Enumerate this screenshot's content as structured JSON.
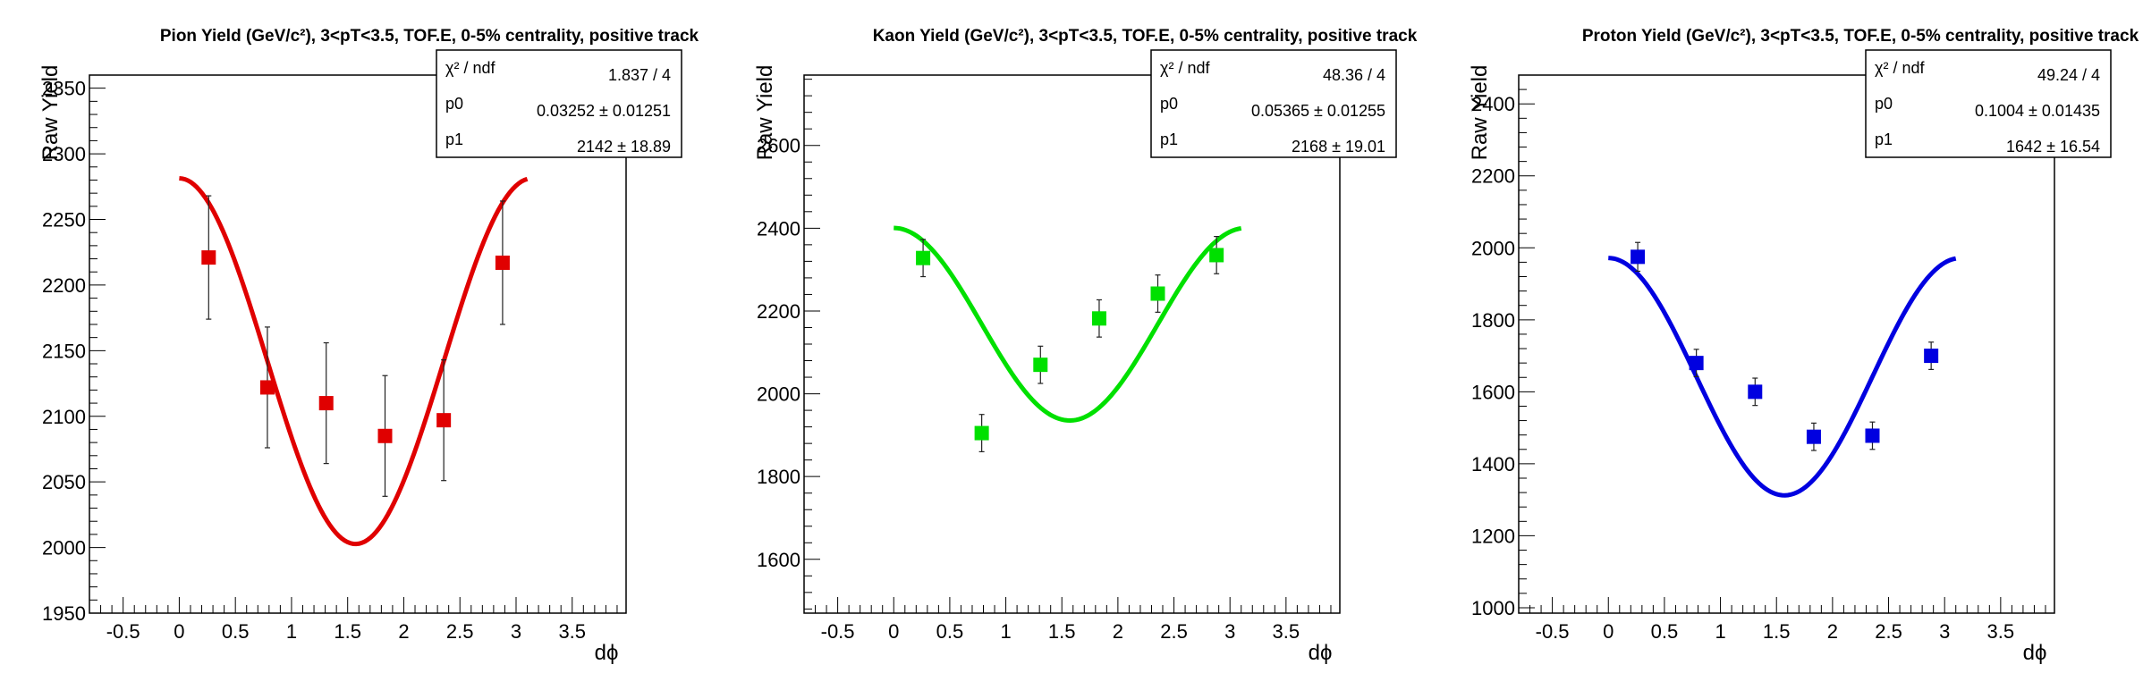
{
  "chart_data": [
    {
      "type": "scatter",
      "title": "Pion Yield (GeV/c²), 3<pT<3.5, TOF.E, 0-5% centrality, positive track",
      "xlabel": "dϕ",
      "ylabel": "Raw Yield",
      "xlim": [
        -0.8,
        3.98
      ],
      "ylim": [
        1950,
        2360
      ],
      "x_ticks": [
        "-0.5",
        "0",
        "0.5",
        "1",
        "1.5",
        "2",
        "2.5",
        "3",
        "3.5"
      ],
      "y_ticks": [
        "1950",
        "2000",
        "2050",
        "2100",
        "2150",
        "2200",
        "2250",
        "2300",
        "2350"
      ],
      "color": "#e00000",
      "series": [
        {
          "x": [
            0.262,
            0.785,
            1.309,
            1.833,
            2.356,
            2.88
          ],
          "y": [
            2221,
            2122,
            2110,
            2085,
            2097,
            2217
          ],
          "err": [
            47,
            46,
            46,
            46,
            46,
            47
          ]
        }
      ],
      "fit": {
        "p0": 0.03252,
        "p1": 2142,
        "xrange": [
          0.0,
          3.1
        ]
      },
      "stats": [
        {
          "label": "χ² / ndf",
          "value": "1.837 / 4"
        },
        {
          "label": "p0",
          "value": "0.03252 ± 0.01251"
        },
        {
          "label": "p1",
          "value": "2142 ± 18.89"
        }
      ]
    },
    {
      "type": "scatter",
      "title": "Kaon Yield (GeV/c²), 3<pT<3.5, TOF.E, 0-5% centrality, positive track",
      "xlabel": "dϕ",
      "ylabel": "Raw Yield",
      "xlim": [
        -0.8,
        3.98
      ],
      "ylim": [
        1470,
        2770
      ],
      "x_ticks": [
        "-0.5",
        "0",
        "0.5",
        "1",
        "1.5",
        "2",
        "2.5",
        "3",
        "3.5"
      ],
      "y_ticks": [
        "1600",
        "1800",
        "2000",
        "2200",
        "2400",
        "2600"
      ],
      "color": "#00e000",
      "series": [
        {
          "x": [
            0.262,
            0.785,
            1.309,
            1.833,
            2.356,
            2.88
          ],
          "y": [
            2328,
            1905,
            2070,
            2182,
            2242,
            2335
          ],
          "err": [
            45,
            45,
            45,
            45,
            45,
            45
          ]
        }
      ],
      "fit": {
        "p0": 0.05365,
        "p1": 2168,
        "xrange": [
          0.0,
          3.1
        ]
      },
      "stats": [
        {
          "label": "χ² / ndf",
          "value": "48.36 / 4"
        },
        {
          "label": "p0",
          "value": "0.05365 ± 0.01255"
        },
        {
          "label": "p1",
          "value": "2168 ± 19.01"
        }
      ]
    },
    {
      "type": "scatter",
      "title": "Proton Yield (GeV/c²), 3<pT<3.5, TOF.E, 0-5% centrality, positive track",
      "xlabel": "dϕ",
      "ylabel": "Raw Yield",
      "xlim": [
        -0.8,
        3.98
      ],
      "ylim": [
        985,
        2480
      ],
      "x_ticks": [
        "-0.5",
        "0",
        "0.5",
        "1",
        "1.5",
        "2",
        "2.5",
        "3",
        "3.5"
      ],
      "y_ticks": [
        "1000",
        "1200",
        "1400",
        "1600",
        "1800",
        "2000",
        "2200",
        "2400"
      ],
      "color": "#0000e0",
      "series": [
        {
          "x": [
            0.262,
            0.785,
            1.309,
            1.833,
            2.356,
            2.88
          ],
          "y": [
            1975,
            1680,
            1600,
            1475,
            1478,
            1700
          ],
          "err": [
            40,
            38,
            38,
            38,
            38,
            38
          ]
        }
      ],
      "fit": {
        "p0": 0.1004,
        "p1": 1642,
        "xrange": [
          0.0,
          3.1
        ]
      },
      "stats": [
        {
          "label": "χ² / ndf",
          "value": "49.24 / 4"
        },
        {
          "label": "p0",
          "value": "0.1004 ± 0.01435"
        },
        {
          "label": "p1",
          "value": "1642 ± 16.54"
        }
      ]
    }
  ]
}
